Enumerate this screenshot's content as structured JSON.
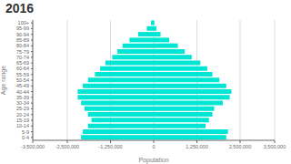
{
  "chart_data": {
    "type": "bar",
    "title": "2016",
    "orientation": "horizontal",
    "x_label": "Population",
    "y_label": "Age range",
    "categories": [
      "0-4",
      "5-9",
      "10-14",
      "15-19",
      "20-24",
      "25-29",
      "30-34",
      "35-39",
      "40-44",
      "45-49",
      "50-54",
      "55-59",
      "60-64",
      "65-69",
      "70-74",
      "75-79",
      "80-84",
      "85-89",
      "90-94",
      "95-99",
      "100+"
    ],
    "series": [
      {
        "color": "#00e5d4",
        "values": [
          -2100000,
          -2050000,
          -1900000,
          -1800000,
          -1900000,
          -2000000,
          -2100000,
          -2200000,
          -2200000,
          -2050000,
          -1900000,
          -1700000,
          -1550000,
          -1400000,
          -1200000,
          -1050000,
          -900000,
          -700000,
          -450000,
          -200000,
          -80000
        ]
      },
      {
        "color": "#00e5d4",
        "values": [
          2100000,
          2150000,
          1500000,
          1600000,
          1700000,
          1750000,
          2000000,
          2200000,
          2250000,
          2100000,
          1900000,
          1700000,
          1550000,
          1350000,
          1100000,
          900000,
          700000,
          450000,
          200000,
          80000,
          20000
        ]
      }
    ],
    "xlim": [
      -3500000,
      3500000
    ],
    "xticks": [
      {
        "value": -3500000,
        "label": "-3,500,000"
      },
      {
        "value": -2500000,
        "label": "-2,500,000"
      },
      {
        "value": -1250000,
        "label": "-1,250,000"
      },
      0,
      {
        "value": 1250000,
        "label": "1,250,000"
      },
      {
        "value": 2500000,
        "label": "2,500,000"
      },
      {
        "value": 3500000,
        "label": "3,500,000"
      }
    ],
    "grid": "x"
  }
}
